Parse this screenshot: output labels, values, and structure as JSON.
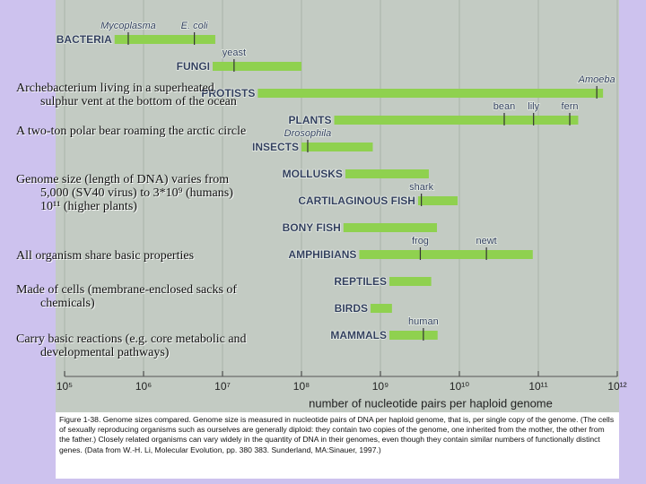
{
  "chart_data": {
    "type": "range_bar",
    "xlabel": "number of nucleotide pairs per haploid genome",
    "xlim": [
      100000,
      1000000000000
    ],
    "log_x": true,
    "grid": true,
    "color": "#8fd14f",
    "xticks": [
      {
        "value": 100000,
        "label": "10⁵"
      },
      {
        "value": 1000000,
        "label": "10⁶"
      },
      {
        "value": 10000000,
        "label": "10⁷"
      },
      {
        "value": 100000000,
        "label": "10⁸"
      },
      {
        "value": 1000000000,
        "label": "10⁹"
      },
      {
        "value": 10000000000,
        "label": "10¹⁰"
      },
      {
        "value": 100000000000,
        "label": "10¹¹"
      },
      {
        "value": 1000000000000,
        "label": "10¹²"
      }
    ],
    "rows": [
      {
        "name": "BACTERIA",
        "range": [
          430000,
          8100000
        ],
        "markers": [
          {
            "label": "Mycoplasma",
            "value": 640000,
            "italic": true
          },
          {
            "label": "E. coli",
            "value": 4400000,
            "italic": true
          }
        ]
      },
      {
        "name": "FUNGI",
        "range": [
          7500000,
          100000000
        ],
        "markers": [
          {
            "label": "yeast",
            "value": 14000000
          }
        ]
      },
      {
        "name": "PROTISTS",
        "range": [
          28000000,
          660000000000
        ],
        "markers": [
          {
            "label": "Amoeba",
            "value": 550000000000,
            "italic": true
          }
        ]
      },
      {
        "name": "PLANTS",
        "range": [
          260000000,
          320000000000
        ],
        "markers": [
          {
            "label": "bean",
            "value": 37000000000
          },
          {
            "label": "lily",
            "value": 87000000000
          },
          {
            "label": "fern",
            "value": 250000000000
          }
        ]
      },
      {
        "name": "INSECTS",
        "range": [
          100000000,
          800000000
        ],
        "markers": [
          {
            "label": "Drosophila",
            "value": 120000000,
            "italic": true
          }
        ]
      },
      {
        "name": "MOLLUSKS",
        "range": [
          360000000,
          4100000000
        ],
        "markers": []
      },
      {
        "name": "CARTILAGINOUS FISH",
        "range": [
          3000000000,
          9500000000
        ],
        "markers": [
          {
            "label": "shark",
            "value": 3300000000
          }
        ]
      },
      {
        "name": "BONY FISH",
        "range": [
          340000000,
          5200000000
        ],
        "markers": []
      },
      {
        "name": "AMPHIBIANS",
        "range": [
          540000000,
          85000000000
        ],
        "markers": [
          {
            "label": "frog",
            "value": 3200000000
          },
          {
            "label": "newt",
            "value": 22000000000
          }
        ]
      },
      {
        "name": "REPTILES",
        "range": [
          1300000000,
          4400000000
        ],
        "markers": []
      },
      {
        "name": "BIRDS",
        "range": [
          750000000,
          1400000000
        ],
        "markers": []
      },
      {
        "name": "MAMMALS",
        "range": [
          1300000000,
          5300000000
        ],
        "markers": [
          {
            "label": "human",
            "value": 3500000000
          }
        ]
      }
    ]
  },
  "slide": {
    "bullets": [
      "Archebacterium living in a superheated sulphur vent at the bottom of the ocean",
      "A two-ton polar bear roaming the arctic circle",
      "Genome size (length of DNA) varies from 5,000 (SV40 virus) to 3*10⁹ (humans) 10¹¹ (higher plants)",
      "All organism share basic properties",
      "Made of cells (membrane-enclosed sacks of chemicals)",
      "Carry basic reactions (e.g. core metabolic and developmental pathways)"
    ]
  },
  "caption": "Figure 1-38. Genome sizes compared. Genome size is measured in nucleotide pairs of DNA per haploid genome, that is, per single copy of the genome. (The cells of sexually reproducing organisms such as ourselves are generally diploid: they contain two copies of the genome, one inherited from the mother, the other from the father.) Closely related organisms can vary widely in the quantity of DNA in their genomes, even though they contain similar numbers of functionally distinct genes. (Data from W.-H. Li, Molecular Evolution, pp. 380 383. Sunderland, MA:Sinauer, 1997.)"
}
